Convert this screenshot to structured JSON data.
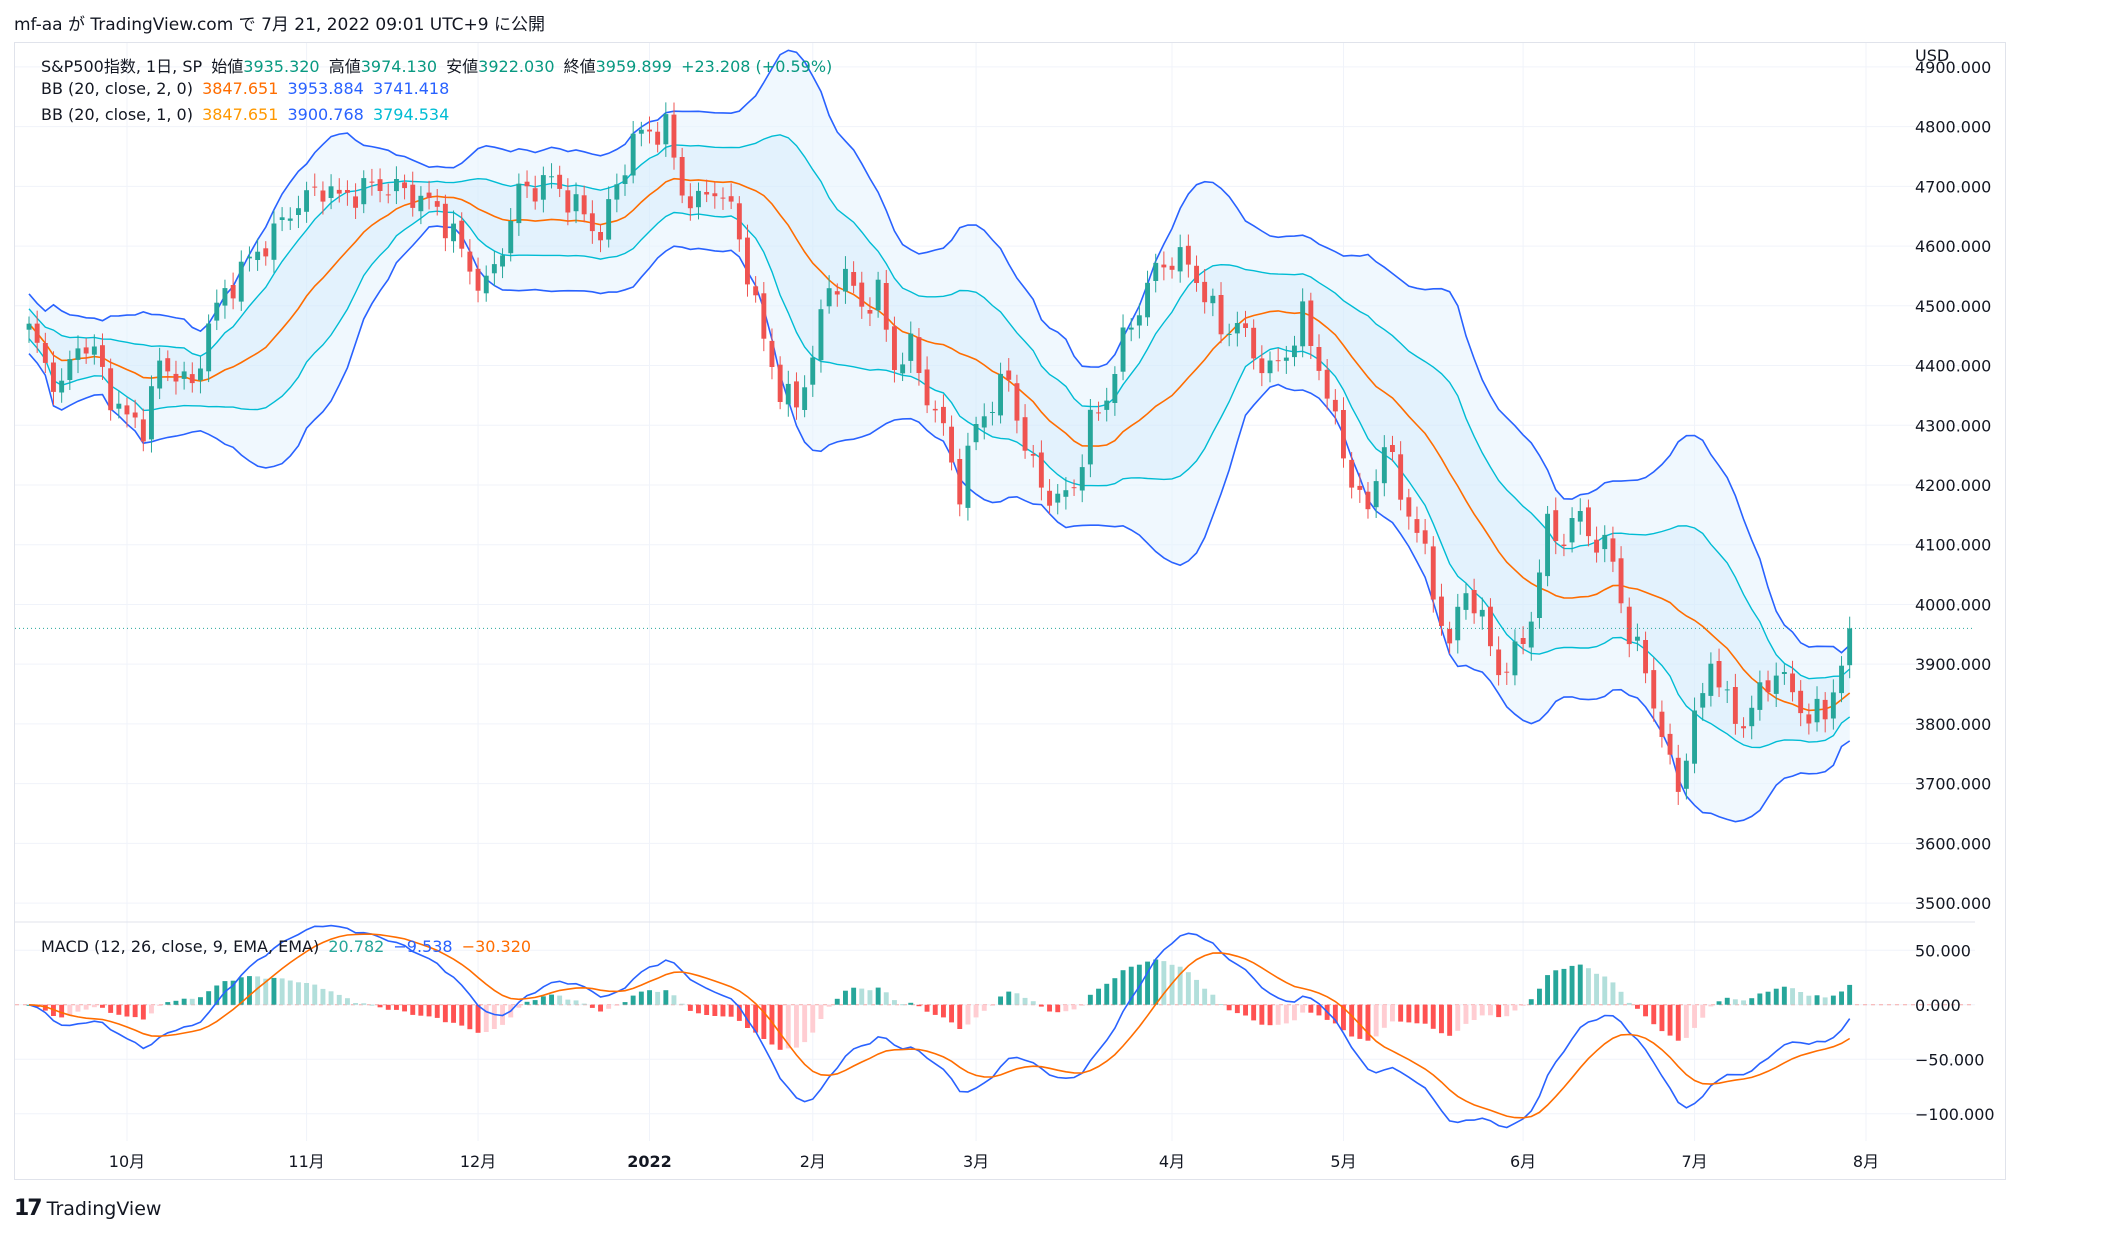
{
  "header": {
    "text": "mf-aa が TradingView.com で 7月 21, 2022 09:01 UTC+9 に公開"
  },
  "legend": {
    "main": {
      "symbol": "S&P500指数, 1日, SP",
      "open_label": "始値",
      "open": "3935.320",
      "high_label": "高値",
      "high": "3974.130",
      "low_label": "安値",
      "low": "3922.030",
      "close_label": "終値",
      "close": "3959.899",
      "change": "+23.208 (+0.59%)"
    },
    "bb2": {
      "label": "BB (20, close, 2, 0)",
      "basis": "3847.651",
      "upper": "3953.884",
      "lower": "3741.418"
    },
    "bb1": {
      "label": "BB (20, close, 1, 0)",
      "basis": "3847.651",
      "upper": "3900.768",
      "lower": "3794.534"
    },
    "macd": {
      "label": "MACD (12, 26, close, 9, EMA, EMA)",
      "hist": "20.782",
      "macd": "−9.538",
      "signal": "−30.320"
    }
  },
  "footer": {
    "brand": "TradingView",
    "logo": "17"
  },
  "colors": {
    "up": "#26a69a",
    "down": "#ef5350",
    "bb_outer": "#2962ff",
    "bb_inner": "#00bcd4",
    "basis": "#ff6d00",
    "band_fill": "#e3f2fd",
    "macd_line": "#2962ff",
    "signal_line": "#ff6d00",
    "hist_up_strong": "#26a69a",
    "hist_up_weak": "#b2dfdb",
    "hist_down_strong": "#ff5252",
    "hist_down_weak": "#ffcdd2"
  },
  "chart_data": {
    "type": "candlestick",
    "price_axis": {
      "unit": "USD",
      "ticks": [
        3500,
        3600,
        3700,
        3800,
        3900,
        4000,
        4100,
        4200,
        4300,
        4400,
        4500,
        4600,
        4700,
        4800,
        4900
      ],
      "tick_labels": [
        "3500.000",
        "3600.000",
        "3700.000",
        "3800.000",
        "3900.000",
        "4000.000",
        "4100.000",
        "4200.000",
        "4300.000",
        "4400.000",
        "4500.000",
        "4600.000",
        "4700.000",
        "4800.000",
        "4900.000"
      ],
      "range": [
        3470,
        4940
      ]
    },
    "macd_axis": {
      "ticks": [
        50,
        0,
        -50,
        -100
      ],
      "tick_labels": [
        "50.000",
        "0.000",
        "−50.000",
        "−100.000"
      ],
      "range": [
        -125,
        75
      ]
    },
    "time_axis": {
      "labels": [
        "10月",
        "11月",
        "12月",
        "2022",
        "2月",
        "3月",
        "4月",
        "5月",
        "6月",
        "7月",
        "8月"
      ],
      "label_bar_index": [
        12,
        34,
        55,
        76,
        96,
        116,
        140,
        161,
        183,
        204,
        225
      ]
    },
    "last_price": 3959.899,
    "close_anchors": [
      [
        0,
        4460
      ],
      [
        2,
        4400
      ],
      [
        4,
        4360
      ],
      [
        6,
        4440
      ],
      [
        8,
        4420
      ],
      [
        10,
        4350
      ],
      [
        12,
        4310
      ],
      [
        14,
        4300
      ],
      [
        16,
        4400
      ],
      [
        18,
        4390
      ],
      [
        20,
        4360
      ],
      [
        22,
        4470
      ],
      [
        24,
        4520
      ],
      [
        26,
        4560
      ],
      [
        28,
        4590
      ],
      [
        30,
        4620
      ],
      [
        32,
        4660
      ],
      [
        34,
        4680
      ],
      [
        36,
        4700
      ],
      [
        38,
        4680
      ],
      [
        40,
        4690
      ],
      [
        42,
        4700
      ],
      [
        44,
        4700
      ],
      [
        46,
        4690
      ],
      [
        48,
        4680
      ],
      [
        50,
        4660
      ],
      [
        52,
        4620
      ],
      [
        54,
        4560
      ],
      [
        56,
        4530
      ],
      [
        58,
        4600
      ],
      [
        60,
        4690
      ],
      [
        62,
        4700
      ],
      [
        64,
        4710
      ],
      [
        66,
        4680
      ],
      [
        68,
        4650
      ],
      [
        70,
        4620
      ],
      [
        72,
        4700
      ],
      [
        74,
        4780
      ],
      [
        76,
        4790
      ],
      [
        78,
        4800
      ],
      [
        80,
        4690
      ],
      [
        82,
        4670
      ],
      [
        84,
        4700
      ],
      [
        86,
        4660
      ],
      [
        88,
        4560
      ],
      [
        90,
        4440
      ],
      [
        92,
        4360
      ],
      [
        94,
        4330
      ],
      [
        96,
        4420
      ],
      [
        98,
        4530
      ],
      [
        100,
        4550
      ],
      [
        102,
        4500
      ],
      [
        104,
        4520
      ],
      [
        106,
        4400
      ],
      [
        108,
        4430
      ],
      [
        110,
        4350
      ],
      [
        112,
        4290
      ],
      [
        114,
        4190
      ],
      [
        116,
        4300
      ],
      [
        118,
        4340
      ],
      [
        120,
        4380
      ],
      [
        122,
        4260
      ],
      [
        124,
        4200
      ],
      [
        126,
        4170
      ],
      [
        128,
        4200
      ],
      [
        130,
        4300
      ],
      [
        132,
        4350
      ],
      [
        134,
        4440
      ],
      [
        136,
        4500
      ],
      [
        138,
        4560
      ],
      [
        140,
        4580
      ],
      [
        142,
        4570
      ],
      [
        144,
        4520
      ],
      [
        146,
        4460
      ],
      [
        148,
        4470
      ],
      [
        150,
        4420
      ],
      [
        152,
        4390
      ],
      [
        154,
        4420
      ],
      [
        156,
        4480
      ],
      [
        158,
        4400
      ],
      [
        160,
        4300
      ],
      [
        162,
        4210
      ],
      [
        164,
        4150
      ],
      [
        166,
        4280
      ],
      [
        168,
        4180
      ],
      [
        170,
        4130
      ],
      [
        172,
        4020
      ],
      [
        174,
        3930
      ],
      [
        176,
        4030
      ],
      [
        178,
        3970
      ],
      [
        180,
        3890
      ],
      [
        182,
        3910
      ],
      [
        184,
        3980
      ],
      [
        186,
        4130
      ],
      [
        188,
        4110
      ],
      [
        190,
        4150
      ],
      [
        192,
        4100
      ],
      [
        194,
        4080
      ],
      [
        196,
        3940
      ],
      [
        198,
        3900
      ],
      [
        200,
        3770
      ],
      [
        202,
        3700
      ],
      [
        204,
        3800
      ],
      [
        206,
        3910
      ],
      [
        208,
        3830
      ],
      [
        210,
        3800
      ],
      [
        212,
        3850
      ],
      [
        214,
        3890
      ],
      [
        216,
        3850
      ],
      [
        218,
        3810
      ],
      [
        220,
        3820
      ],
      [
        222,
        3900
      ],
      [
        223,
        3959.899
      ]
    ]
  }
}
